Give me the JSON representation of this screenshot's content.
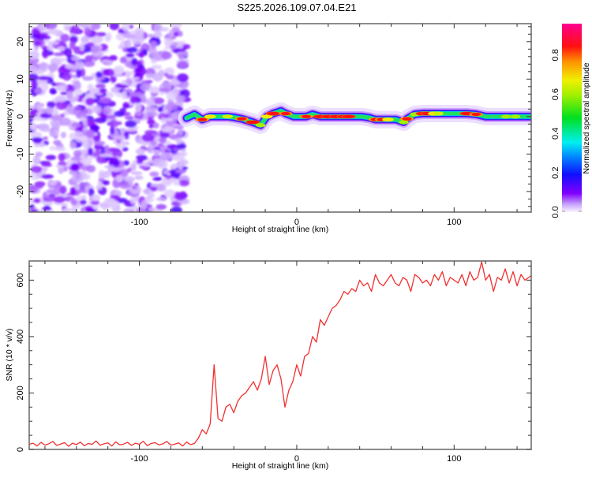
{
  "chart_data": [
    {
      "type": "heatmap",
      "title": "S225.2026.109.07.04.E21",
      "xlabel": "Height of straight line (km)",
      "ylabel": "Frequency (Hz)",
      "xlim": [
        -170,
        149
      ],
      "ylim": [
        -25.5,
        24.8
      ],
      "xticks": [
        "-100",
        "0",
        "100"
      ],
      "xtick_values": [
        -100,
        0,
        100
      ],
      "yticks": [
        "20",
        "10",
        "0",
        "-10",
        "-20"
      ],
      "ytick_values": [
        20,
        10,
        0,
        -10,
        -20
      ],
      "noise_region_km": [
        -170,
        -70
      ],
      "ridge": {
        "x": [
          -70,
          -65,
          -60,
          -55,
          -50,
          -44,
          -40,
          -35,
          -28,
          -23,
          -19,
          -15,
          -10,
          -7,
          -2,
          2,
          6,
          10,
          15,
          20,
          25,
          30,
          33,
          37,
          41,
          46,
          50,
          54,
          58,
          63,
          68,
          70,
          75,
          80,
          83,
          87,
          90,
          96,
          102,
          108,
          114,
          120,
          126,
          133,
          139,
          145,
          149
        ],
        "freq": [
          -0.4,
          0.6,
          -0.8,
          0,
          0,
          0,
          -0.2,
          -0.6,
          -1.5,
          -2.3,
          0,
          0.8,
          1.5,
          0.8,
          0,
          0,
          0,
          0.6,
          0,
          0,
          0,
          0,
          0,
          0,
          0,
          -0.3,
          -0.8,
          -0.8,
          -0.8,
          -0.8,
          -1.5,
          -0.6,
          0.6,
          0.8,
          0.8,
          0.8,
          0.8,
          0.8,
          0.8,
          0.8,
          0.6,
          0,
          0,
          0,
          0,
          0,
          0
        ],
        "amplitude": [
          0.5,
          0.6,
          0.9,
          0.8,
          0.55,
          0.75,
          0.5,
          0.9,
          0.95,
          0.7,
          0.8,
          0.95,
          0.6,
          0.9,
          0.6,
          0.55,
          0.9,
          0.6,
          0.95,
          0.95,
          0.95,
          0.95,
          0.95,
          0.5,
          0.5,
          0.55,
          0.9,
          0.9,
          0.8,
          0.45,
          0.7,
          0.9,
          0.7,
          0.95,
          0.95,
          0.8,
          0.75,
          0.6,
          0.55,
          0.95,
          0.9,
          0.5,
          0.6,
          0.7,
          0.7,
          0.6,
          0.55
        ]
      },
      "colorbar": {
        "label": "Normalized spectral amplitude",
        "range": [
          0,
          0.96
        ],
        "ticks": [
          "0.0",
          "0.2",
          "0.4",
          "0.6",
          "0.8"
        ],
        "tick_values": [
          0,
          0.2,
          0.4,
          0.6,
          0.8
        ]
      }
    },
    {
      "type": "line",
      "xlabel": "Height of straight line (km)",
      "ylabel": "SNR (10 * v/v)",
      "xlim": [
        -170,
        149
      ],
      "ylim": [
        0,
        668
      ],
      "xticks": [
        "-100",
        "0",
        "100"
      ],
      "xtick_values": [
        -100,
        0,
        100
      ],
      "yticks": [
        "0",
        "200",
        "400",
        "600"
      ],
      "ytick_values": [
        0,
        200,
        400,
        600
      ],
      "series": [
        {
          "name": "SNR",
          "color": "#f03030",
          "x_start": -170,
          "x_step": 2.5,
          "values": [
            18,
            22,
            12,
            25,
            15,
            20,
            28,
            14,
            19,
            24,
            11,
            22,
            17,
            26,
            13,
            21,
            18,
            30,
            15,
            20,
            23,
            12,
            27,
            16,
            19,
            25,
            14,
            22,
            18,
            29,
            13,
            21,
            24,
            16,
            20,
            28,
            15,
            19,
            23,
            12,
            26,
            17,
            21,
            40,
            70,
            55,
            90,
            300,
            110,
            100,
            150,
            160,
            130,
            170,
            190,
            200,
            220,
            240,
            210,
            250,
            330,
            230,
            280,
            300,
            250,
            150,
            210,
            240,
            300,
            260,
            330,
            340,
            400,
            380,
            460,
            440,
            470,
            500,
            510,
            530,
            560,
            550,
            570,
            560,
            600,
            580,
            590,
            560,
            620,
            590,
            580,
            600,
            620,
            590,
            580,
            610,
            600,
            560,
            620,
            610,
            590,
            600,
            580,
            620,
            600,
            630,
            580,
            610,
            600,
            590,
            620,
            580,
            630,
            600,
            610,
            665,
            600,
            620,
            560,
            610,
            600,
            640,
            590,
            630,
            580,
            620,
            600,
            610,
            620
          ]
        }
      ]
    }
  ]
}
